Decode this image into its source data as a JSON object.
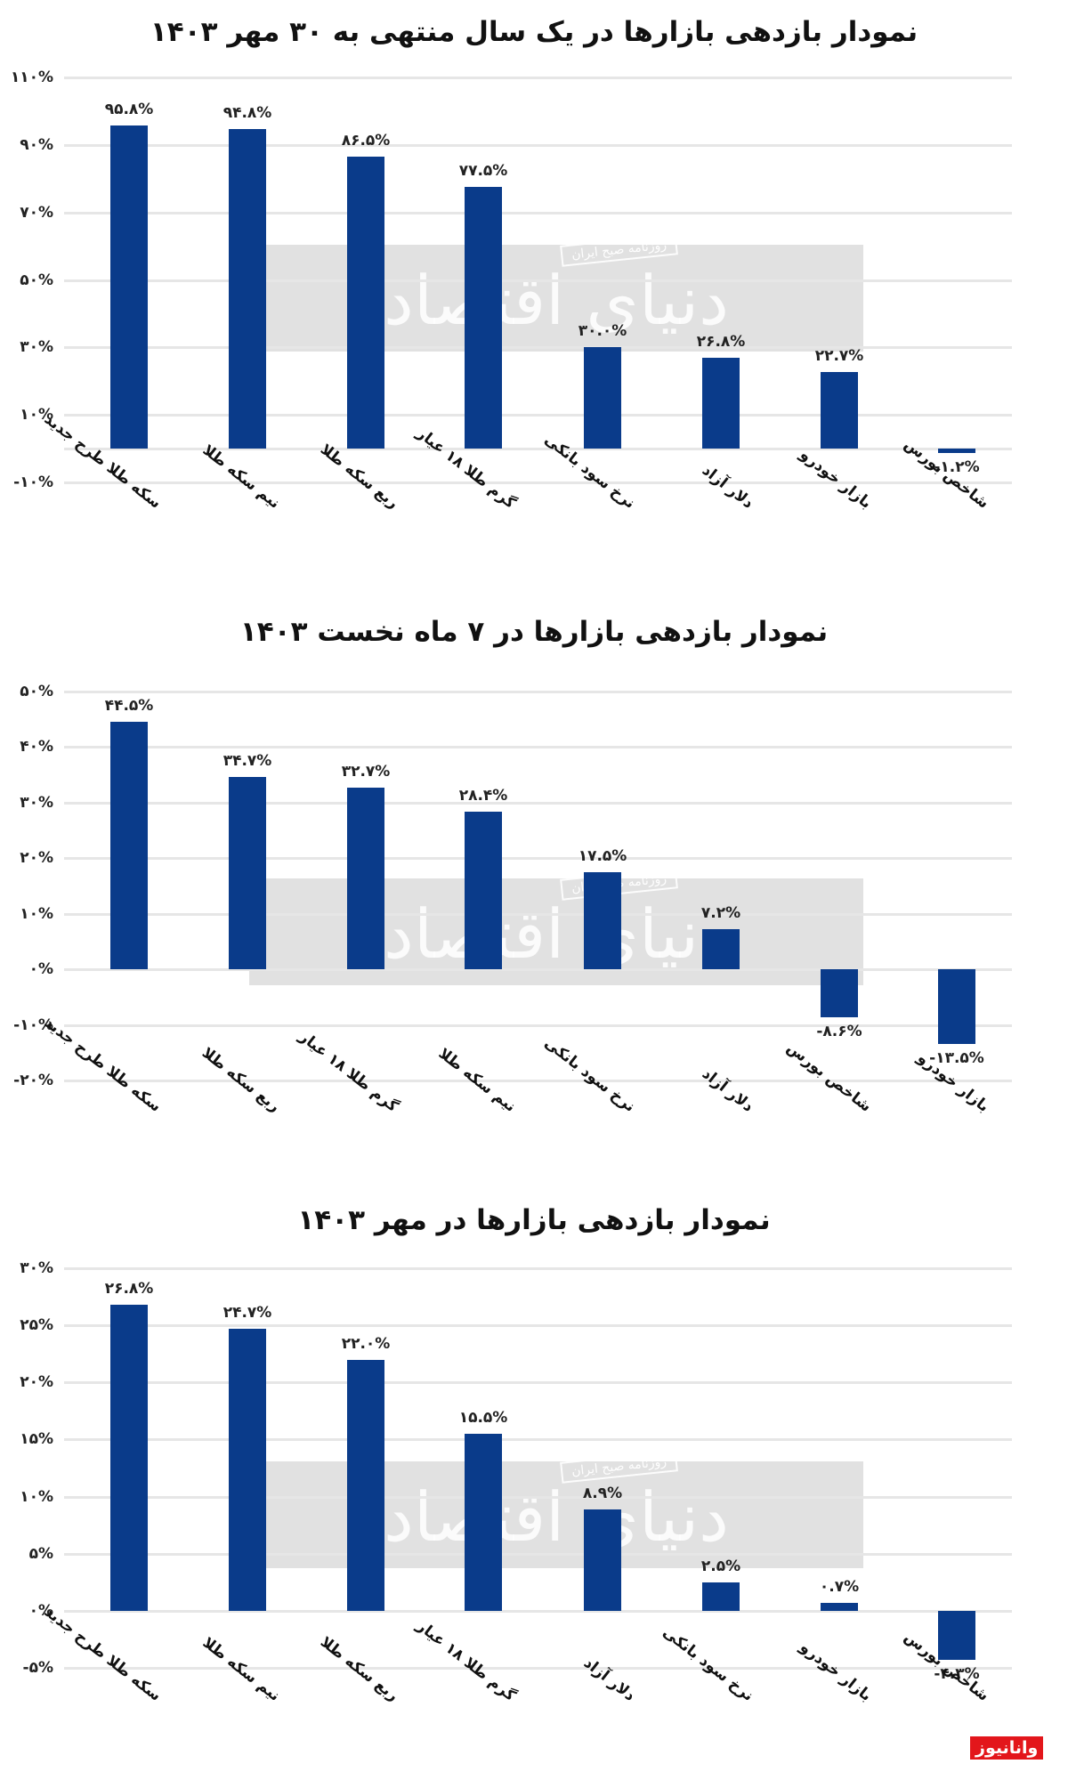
{
  "watermark": {
    "text": "دنیای اقتصاد",
    "subtext": "روزنامه صبح ایران"
  },
  "logo": {
    "text": "وانانیوز",
    "color": "#e3161b"
  },
  "colors": {
    "bar": "#0a3b8a",
    "grid": "#e6e6e6"
  },
  "chart_data": [
    {
      "type": "bar",
      "title": "نمودار بازدهی بازارها در یک سال منتهی به ۳۰ مهر ۱۴۰۳",
      "xlabel": "",
      "ylabel": "",
      "yticks": [
        "۱۱۰%",
        "۹۰%",
        "۷۰%",
        "۵۰%",
        "۳۰%",
        "۱۰%",
        "-۱۰%"
      ],
      "ytick_values": [
        110,
        90,
        70,
        50,
        30,
        10,
        -10
      ],
      "ylim": [
        -10,
        110
      ],
      "categories": [
        "سکه طلا طرح جدید",
        "نیم سکه طلا",
        "ربع سکه طلا",
        "گرم طلا ۱۸ عیار",
        "نرخ سود بانکی",
        "دلار آزاد",
        "بازار خودرو",
        "شاخص بورس"
      ],
      "values": [
        95.8,
        94.8,
        86.5,
        77.5,
        30.0,
        26.8,
        22.7,
        -1.2
      ],
      "value_labels": [
        "۹۵.۸%",
        "۹۴.۸%",
        "۸۶.۵%",
        "۷۷.۵%",
        "۳۰.۰%",
        "۲۶.۸%",
        "۲۲.۷%",
        "-۱.۲%"
      ],
      "grid": true
    },
    {
      "type": "bar",
      "title": "نمودار بازدهی بازارها در ۷ ماه نخست ۱۴۰۳",
      "xlabel": "",
      "ylabel": "",
      "yticks": [
        "۵۰%",
        "۴۰%",
        "۳۰%",
        "۲۰%",
        "۱۰%",
        "۰%",
        "-۱۰%",
        "-۲۰%"
      ],
      "ytick_values": [
        50,
        40,
        30,
        20,
        10,
        0,
        -10,
        -20
      ],
      "ylim": [
        -20,
        50
      ],
      "categories": [
        "سکه طلا طرح جدید",
        "ربع سکه طلا",
        "گرم طلا ۱۸ عیار",
        "نیم سکه طلا",
        "نرخ سود بانکی",
        "دلار آزاد",
        "شاخص بورس",
        "بازار خودرو"
      ],
      "values": [
        44.5,
        34.7,
        32.7,
        28.4,
        17.5,
        7.2,
        -8.6,
        -13.5
      ],
      "value_labels": [
        "۴۴.۵%",
        "۳۴.۷%",
        "۳۲.۷%",
        "۲۸.۴%",
        "۱۷.۵%",
        "۷.۲%",
        "-۸.۶%",
        "-۱۳.۵%"
      ],
      "grid": true
    },
    {
      "type": "bar",
      "title": "نمودار بازدهی بازارها در مهر ۱۴۰۳",
      "xlabel": "",
      "ylabel": "",
      "yticks": [
        "۳۰%",
        "۲۵%",
        "۲۰%",
        "۱۵%",
        "۱۰%",
        "۵%",
        "۰%",
        "-۵%"
      ],
      "ytick_values": [
        30,
        25,
        20,
        15,
        10,
        5,
        0,
        -5
      ],
      "ylim": [
        -5,
        30
      ],
      "categories": [
        "سکه طلا طرح جدید",
        "نیم سکه طلا",
        "ربع سکه طلا",
        "گرم طلا ۱۸ عیار",
        "دلار آزاد",
        "نرخ سود بانکی",
        "بازار خودرو",
        "شاخص بورس"
      ],
      "values": [
        26.8,
        24.7,
        22.0,
        15.5,
        8.9,
        2.5,
        0.7,
        -4.3
      ],
      "value_labels": [
        "۲۶.۸%",
        "۲۴.۷%",
        "۲۲.۰%",
        "۱۵.۵%",
        "۸.۹%",
        "۲.۵%",
        "۰.۷%",
        "-۴.۳%"
      ],
      "grid": true
    }
  ]
}
